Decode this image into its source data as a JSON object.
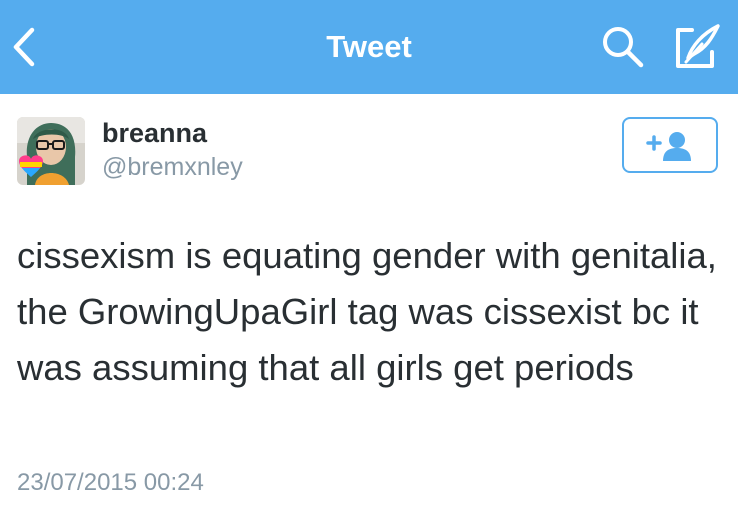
{
  "nav": {
    "title": "Tweet",
    "back_icon": "chevron-left-icon",
    "search_icon": "search-icon",
    "compose_icon": "compose-icon",
    "bar_color": "#55ACEE"
  },
  "author": {
    "name": "breanna",
    "handle": "@bremxnley",
    "avatar_icon": "user-avatar"
  },
  "follow": {
    "icon": "follow-user-icon",
    "accent_color": "#55ACEE"
  },
  "tweet": {
    "text": "cissexism is equating gender with genitalia, the GrowingUpaGirl tag was cissexist bc it was assuming that all girls get periods",
    "timestamp": "23/07/2015 00:24"
  }
}
